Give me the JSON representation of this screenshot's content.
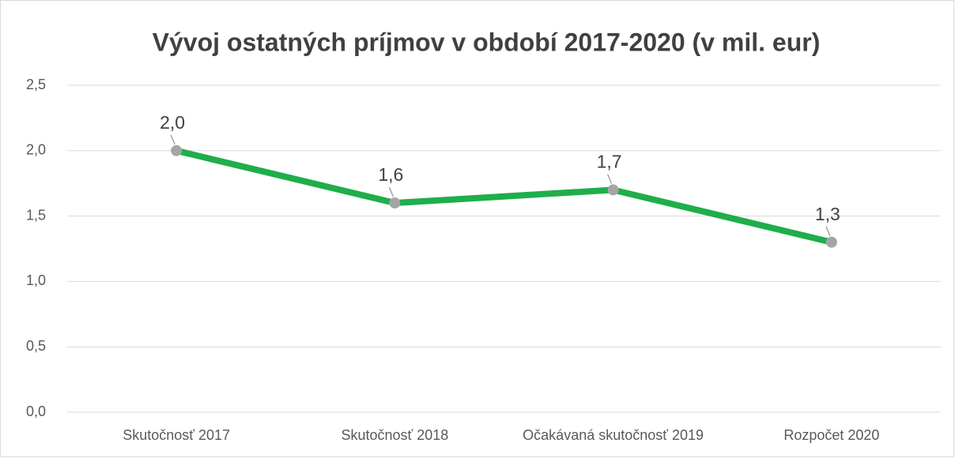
{
  "chart_data": {
    "type": "line",
    "title": "Vývoj ostatných príjmov v období 2017-2020 (v mil. eur)",
    "categories": [
      "Skutočnosť 2017",
      "Skutočnosť 2018",
      "Očakávaná skutočnosť 2019",
      "Rozpočet 2020"
    ],
    "values": [
      2.0,
      1.6,
      1.7,
      1.3
    ],
    "value_labels": [
      "2,0",
      "1,6",
      "1,7",
      "1,3"
    ],
    "color": "#1fae4b",
    "marker_color": "#a5a5a5",
    "ylim": [
      0,
      2.5
    ],
    "yticks": [
      {
        "value": 0,
        "label": "0,0"
      },
      {
        "value": 0.5,
        "label": "0,5"
      },
      {
        "value": 1,
        "label": "1,0"
      },
      {
        "value": 1.5,
        "label": "1,5"
      },
      {
        "value": 2,
        "label": "2,0"
      },
      {
        "value": 2.5,
        "label": "2,5"
      }
    ],
    "grid": true
  }
}
